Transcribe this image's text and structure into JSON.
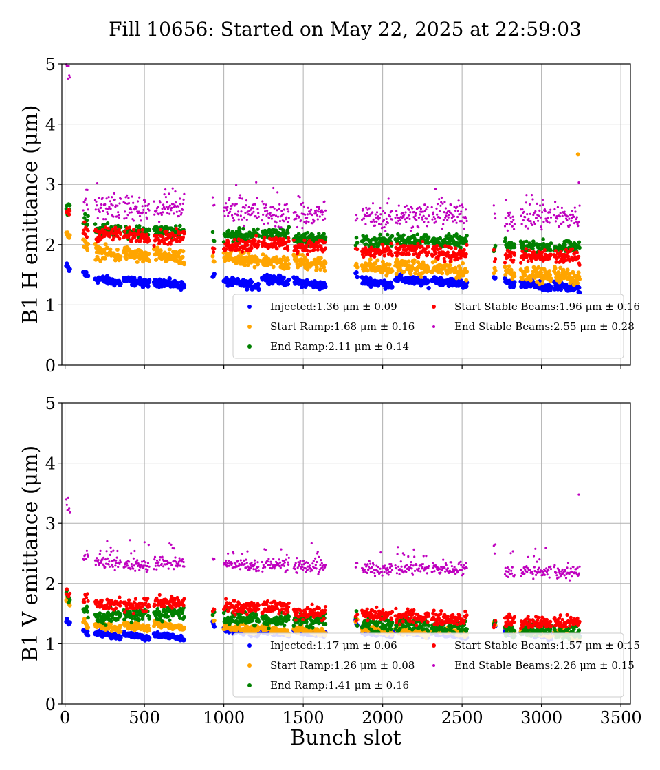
{
  "chart_data": [
    {
      "type": "scatter",
      "title": "Fill 10656: Started on May 22, 2025 at 22:59:03",
      "xlabel": "Bunch slot",
      "ylabel": "B1 H emittance (μm)",
      "xlim": [
        -20,
        3560
      ],
      "ylim": [
        0,
        5
      ],
      "xticks": [
        "0",
        "500",
        "1000",
        "1500",
        "2000",
        "2500",
        "3000",
        "3500"
      ],
      "yticks": [
        "0",
        "1",
        "2",
        "3",
        "4",
        "5"
      ],
      "grid": true,
      "legend_position": "lower-right",
      "trains": [
        [
          8,
          30
        ],
        [
          115,
          145
        ],
        [
          190,
          350
        ],
        [
          370,
          530
        ],
        [
          560,
          750
        ],
        [
          930,
          940
        ],
        [
          1000,
          1220
        ],
        [
          1240,
          1410
        ],
        [
          1440,
          1640
        ],
        [
          1830,
          1840
        ],
        [
          1870,
          2060
        ],
        [
          2080,
          2290
        ],
        [
          2310,
          2530
        ],
        [
          2700,
          2710
        ],
        [
          2770,
          2830
        ],
        [
          2870,
          3060
        ],
        [
          3080,
          3240
        ]
      ],
      "series": [
        {
          "name": "Injected",
          "legend": "Injected:1.36 μm ± 0.09",
          "color": "#0000ff",
          "marker_r": 3.2,
          "mean": 1.36,
          "std": 0.09,
          "train_levels": [
            1.6,
            1.5,
            1.4,
            1.38,
            1.35,
            1.48,
            1.35,
            1.42,
            1.35,
            1.5,
            1.37,
            1.4,
            1.38,
            1.4,
            1.36,
            1.33,
            1.3
          ]
        },
        {
          "name": "Start Ramp",
          "legend": "Start Ramp:1.68 μm ± 0.16",
          "color": "#ffa500",
          "marker_r": 3.0,
          "mean": 1.68,
          "std": 0.16,
          "train_levels": [
            2.18,
            1.95,
            1.85,
            1.82,
            1.8,
            1.74,
            1.75,
            1.72,
            1.7,
            1.65,
            1.62,
            1.62,
            1.58,
            1.55,
            1.55,
            1.5,
            1.48
          ]
        },
        {
          "name": "End Ramp",
          "legend": "End Ramp:2.11 μm ± 0.14",
          "color": "#008000",
          "marker_r": 2.8,
          "mean": 2.11,
          "std": 0.14,
          "train_levels": [
            2.6,
            2.38,
            2.25,
            2.22,
            2.22,
            2.12,
            2.15,
            2.18,
            2.1,
            2.05,
            2.05,
            2.08,
            2.05,
            1.95,
            1.98,
            1.97,
            1.95
          ]
        },
        {
          "name": "Start Stable Beams",
          "legend": "Start Stable Beams:1.96 μm ± 0.16",
          "color": "#ff0000",
          "marker_r": 2.6,
          "mean": 1.96,
          "std": 0.16,
          "train_levels": [
            2.55,
            2.25,
            2.18,
            2.15,
            2.12,
            1.97,
            2.0,
            2.02,
            1.98,
            1.9,
            1.88,
            1.9,
            1.85,
            1.8,
            1.82,
            1.8,
            1.8
          ]
        },
        {
          "name": "End Stable Beams",
          "legend": "End Stable Beams:2.55 μm ± 0.28",
          "color": "#bf00bf",
          "marker_r": 1.6,
          "mean": 2.55,
          "std": 0.28,
          "train_levels": [
            4.9,
            2.8,
            2.62,
            2.6,
            2.6,
            2.6,
            2.55,
            2.5,
            2.48,
            2.45,
            2.45,
            2.48,
            2.5,
            2.6,
            2.45,
            2.45,
            2.45
          ]
        }
      ],
      "outliers": [
        {
          "series": 1,
          "x": 3230,
          "y": 3.5
        },
        {
          "series": 4,
          "x": 3235,
          "y": 3.03
        }
      ]
    },
    {
      "type": "scatter",
      "xlabel": "Bunch slot",
      "ylabel": "B1 V emittance (μm)",
      "xlim": [
        -20,
        3560
      ],
      "ylim": [
        0,
        5
      ],
      "xticks": [
        "0",
        "500",
        "1000",
        "1500",
        "2000",
        "2500",
        "3000",
        "3500"
      ],
      "yticks": [
        "0",
        "1",
        "2",
        "3",
        "4",
        "5"
      ],
      "grid": true,
      "legend_position": "lower-right",
      "trains": [
        [
          8,
          30
        ],
        [
          115,
          145
        ],
        [
          190,
          350
        ],
        [
          370,
          530
        ],
        [
          560,
          750
        ],
        [
          930,
          940
        ],
        [
          1000,
          1220
        ],
        [
          1240,
          1410
        ],
        [
          1440,
          1640
        ],
        [
          1830,
          1840
        ],
        [
          1870,
          2060
        ],
        [
          2080,
          2290
        ],
        [
          2310,
          2530
        ],
        [
          2700,
          2710
        ],
        [
          2770,
          2830
        ],
        [
          2870,
          3060
        ],
        [
          3080,
          3240
        ]
      ],
      "series": [
        {
          "name": "Injected",
          "legend": "Injected:1.17 μm ± 0.06",
          "color": "#0000ff",
          "marker_r": 3.2,
          "mean": 1.17,
          "std": 0.06,
          "train_levels": [
            1.35,
            1.2,
            1.15,
            1.13,
            1.12,
            1.32,
            1.2,
            1.18,
            1.18,
            1.32,
            1.18,
            1.18,
            1.15,
            1.3,
            1.18,
            1.15,
            1.15
          ]
        },
        {
          "name": "Start Ramp",
          "legend": "Start Ramp:1.26 μm ± 0.08",
          "color": "#ffa500",
          "marker_r": 3.0,
          "mean": 1.26,
          "std": 0.08,
          "train_levels": [
            1.7,
            1.35,
            1.28,
            1.28,
            1.3,
            1.42,
            1.25,
            1.22,
            1.22,
            1.4,
            1.22,
            1.2,
            1.2,
            1.32,
            1.22,
            1.18,
            1.15
          ]
        },
        {
          "name": "End Ramp",
          "legend": "End Ramp:1.41 μm ± 0.16",
          "color": "#008000",
          "marker_r": 2.8,
          "mean": 1.41,
          "std": 0.16,
          "train_levels": [
            1.75,
            1.55,
            1.45,
            1.48,
            1.52,
            1.52,
            1.42,
            1.4,
            1.4,
            1.42,
            1.32,
            1.32,
            1.28,
            1.35,
            1.25,
            1.25,
            1.2
          ]
        },
        {
          "name": "Start Stable Beams",
          "legend": "Start Stable Beams:1.57 μm ± 0.15",
          "color": "#ff0000",
          "marker_r": 2.6,
          "mean": 1.57,
          "std": 0.15,
          "train_levels": [
            1.85,
            1.75,
            1.65,
            1.65,
            1.68,
            1.55,
            1.6,
            1.6,
            1.52,
            1.45,
            1.48,
            1.45,
            1.42,
            1.35,
            1.38,
            1.35,
            1.35
          ]
        },
        {
          "name": "End Stable Beams",
          "legend": "End Stable Beams:2.26 μm ± 0.15",
          "color": "#bf00bf",
          "marker_r": 1.6,
          "mean": 2.26,
          "std": 0.15,
          "train_levels": [
            3.2,
            2.45,
            2.35,
            2.3,
            2.35,
            2.45,
            2.3,
            2.32,
            2.28,
            2.25,
            2.25,
            2.25,
            2.25,
            2.58,
            2.2,
            2.2,
            2.18
          ]
        }
      ],
      "outliers": [
        {
          "series": 4,
          "x": 3235,
          "y": 3.48
        },
        {
          "series": 4,
          "x": 20,
          "y": 3.42
        }
      ]
    }
  ]
}
